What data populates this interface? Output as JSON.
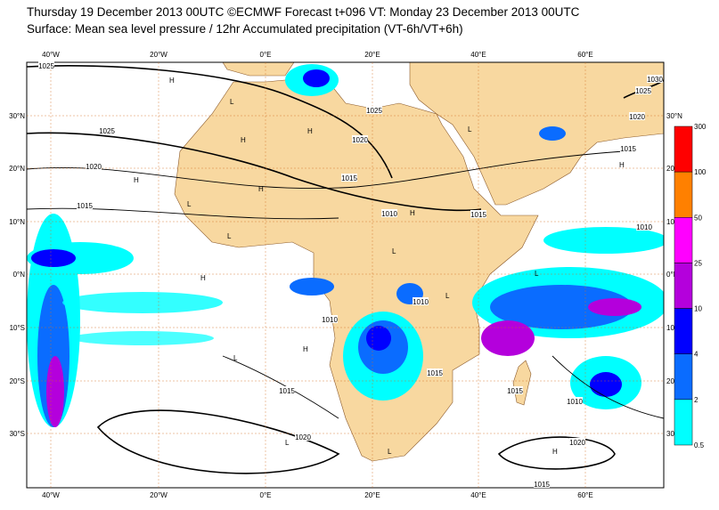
{
  "header": {
    "title_line1": "Thursday 19 December 2013 00UTC ©ECMWF Forecast t+096 VT: Monday 23 December 2013 00UTC",
    "title_line2": "Surface: Mean sea level pressure / 12hr Accumulated precipitation (VT-6h/VT+6h)"
  },
  "map": {
    "lon_labels": [
      "40°W",
      "20°W",
      "0°E",
      "20°E",
      "40°E",
      "60°E"
    ],
    "lat_labels_left": [
      "30°N",
      "20°N",
      "10°N",
      "0°N",
      "10°S",
      "20°S",
      "30°S"
    ],
    "lat_labels_right": [
      "30°N",
      "20",
      "10°N",
      "0°N",
      "10°S",
      "20°S",
      "30"
    ],
    "isobar_labels": [
      "1025",
      "1025",
      "1020",
      "1015",
      "1025",
      "1020",
      "1015",
      "1010",
      "1015",
      "1010",
      "1010",
      "1010",
      "1015",
      "1015",
      "1010",
      "1015",
      "1020",
      "1020",
      "1015",
      "1030",
      "1025",
      "1020",
      "1015"
    ],
    "centers": [
      "H",
      "L",
      "H",
      "L",
      "H",
      "H",
      "L",
      "H",
      "L",
      "L",
      "H",
      "L",
      "L",
      "H",
      "L",
      "H",
      "L",
      "H",
      "L",
      "H"
    ]
  },
  "colorbar": {
    "labels": [
      "300",
      "100",
      "50",
      "25",
      "10",
      "4",
      "2",
      "0.5"
    ],
    "colors": [
      "#ff0000",
      "#ff8000",
      "#ff00ff",
      "#b400dc",
      "#0000ff",
      "#0a6cff",
      "#00ffff"
    ]
  }
}
